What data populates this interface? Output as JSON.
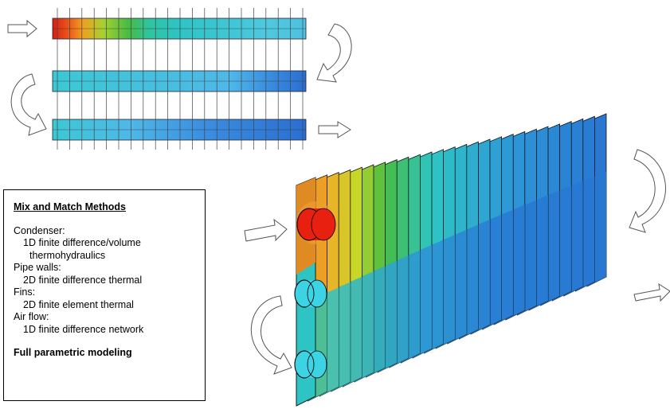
{
  "textbox": {
    "title": "Mix and Match Methods",
    "lines": [
      {
        "text": "Condenser:",
        "level": 0
      },
      {
        "text": "1D finite difference/volume",
        "level": 1
      },
      {
        "text": "thermohydraulics",
        "level": 2
      },
      {
        "text": "Pipe walls:",
        "level": 0
      },
      {
        "text": "2D finite difference thermal",
        "level": 1
      },
      {
        "text": "Fins:",
        "level": 0
      },
      {
        "text": "2D finite element thermal",
        "level": 1
      },
      {
        "text": "Air flow:",
        "level": 0
      },
      {
        "text": "1D finite difference network",
        "level": 1
      }
    ],
    "footer": "Full parametric modeling"
  },
  "colors": {
    "hot": "#d81e12",
    "warm": "#f08a1e",
    "yellow": "#e2d22a",
    "green": "#46bc44",
    "teal": "#2ec4c4",
    "cyan": "#4fc8e0",
    "blue": "#2e7fd8",
    "deep_blue": "#1d5ec8",
    "arrow_stroke": "#555555"
  }
}
